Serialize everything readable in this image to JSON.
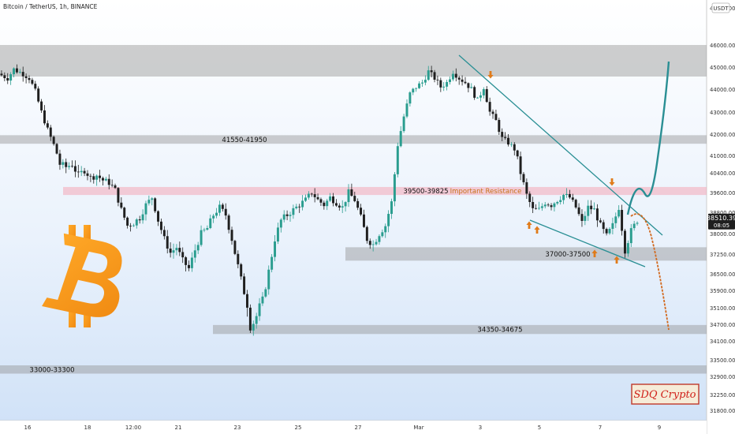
{
  "header": {
    "title": "Bitcoin / TetherUS, 1h, BINANCE",
    "currency_badge": "USDT"
  },
  "price_label": {
    "price": "38510.39",
    "countdown": "08:05"
  },
  "logo": {
    "text": "SDQ Crypto"
  },
  "colors": {
    "candle_up": "#2a9d8f",
    "candle_down": "#1f1f1f",
    "zone_gray": "#8c8c8c",
    "zone_pink": "#f4a6b6",
    "trendline": "#2a8f94",
    "bullish_path": "#2a8f94",
    "bearish_path": "#d2691e",
    "arrow": "#e07b1a",
    "bitcoin_orange": "#f7931a"
  },
  "chart_data": {
    "type": "candlestick",
    "title": "Bitcoin / TetherUS, 1h, BINANCE",
    "y_unit": "USDT",
    "ylim": [
      31600,
      47300
    ],
    "y_ticks": [
      47000,
      46000,
      45000,
      44000,
      43000,
      42000,
      41000,
      40400,
      39600,
      38800,
      38000,
      37250,
      36500,
      35900,
      35100,
      34700,
      34100,
      33500,
      32900,
      32250,
      31800
    ],
    "x_tick_labels": [
      "16",
      "18",
      "12:00",
      "21",
      "23",
      "25",
      "27",
      "Mar",
      "3",
      "5",
      "7",
      "9"
    ],
    "close_path": [
      [
        0,
        44700
      ],
      [
        3,
        44500
      ],
      [
        5,
        44900
      ],
      [
        8,
        44700
      ],
      [
        10,
        44500
      ],
      [
        12,
        43900
      ],
      [
        14,
        43000
      ],
      [
        16,
        42200
      ],
      [
        18,
        41500
      ],
      [
        20,
        40700
      ],
      [
        22,
        40600
      ],
      [
        24,
        40700
      ],
      [
        26,
        40300
      ],
      [
        28,
        40500
      ],
      [
        30,
        40200
      ],
      [
        32,
        40300
      ],
      [
        34,
        40100
      ],
      [
        36,
        40000
      ],
      [
        38,
        39700
      ],
      [
        40,
        38900
      ],
      [
        42,
        38300
      ],
      [
        44,
        38400
      ],
      [
        46,
        38600
      ],
      [
        48,
        39100
      ],
      [
        50,
        39400
      ],
      [
        52,
        38500
      ],
      [
        54,
        37800
      ],
      [
        56,
        37300
      ],
      [
        58,
        37500
      ],
      [
        60,
        37000
      ],
      [
        62,
        36700
      ],
      [
        64,
        37400
      ],
      [
        66,
        38000
      ],
      [
        68,
        38200
      ],
      [
        70,
        38700
      ],
      [
        72,
        39000
      ],
      [
        74,
        38700
      ],
      [
        76,
        37800
      ],
      [
        78,
        36800
      ],
      [
        80,
        35800
      ],
      [
        82,
        34600
      ],
      [
        84,
        34900
      ],
      [
        86,
        35500
      ],
      [
        88,
        36600
      ],
      [
        90,
        37800
      ],
      [
        92,
        38500
      ],
      [
        94,
        38700
      ],
      [
        96,
        38900
      ],
      [
        98,
        39100
      ],
      [
        100,
        39300
      ],
      [
        102,
        39600
      ],
      [
        104,
        39300
      ],
      [
        106,
        39100
      ],
      [
        108,
        39400
      ],
      [
        110,
        39200
      ],
      [
        112,
        39000
      ],
      [
        114,
        39600
      ],
      [
        116,
        39300
      ],
      [
        118,
        38600
      ],
      [
        120,
        37800
      ],
      [
        122,
        37600
      ],
      [
        124,
        38000
      ],
      [
        126,
        38300
      ],
      [
        128,
        39200
      ],
      [
        130,
        41500
      ],
      [
        132,
        42800
      ],
      [
        134,
        43800
      ],
      [
        136,
        44100
      ],
      [
        138,
        44300
      ],
      [
        140,
        44800
      ],
      [
        142,
        44500
      ],
      [
        144,
        44100
      ],
      [
        146,
        44300
      ],
      [
        148,
        44800
      ],
      [
        150,
        44500
      ],
      [
        152,
        44300
      ],
      [
        154,
        44000
      ],
      [
        156,
        43500
      ],
      [
        158,
        44100
      ],
      [
        160,
        43000
      ],
      [
        162,
        42600
      ],
      [
        164,
        41800
      ],
      [
        166,
        41600
      ],
      [
        168,
        41300
      ],
      [
        170,
        40400
      ],
      [
        172,
        39500
      ],
      [
        174,
        38900
      ],
      [
        176,
        38900
      ],
      [
        178,
        39200
      ],
      [
        180,
        39100
      ],
      [
        182,
        39300
      ],
      [
        184,
        39500
      ],
      [
        186,
        39400
      ],
      [
        188,
        39000
      ],
      [
        190,
        38400
      ],
      [
        192,
        39000
      ],
      [
        194,
        38900
      ],
      [
        196,
        38300
      ],
      [
        198,
        37900
      ],
      [
        200,
        38300
      ],
      [
        202,
        39000
      ],
      [
        204,
        37400
      ],
      [
        206,
        38100
      ],
      [
        208,
        38500
      ]
    ],
    "zones": [
      {
        "label": "",
        "low": 44650,
        "high": 45950
      },
      {
        "label": "41550-41950",
        "low": 41550,
        "high": 41950
      },
      {
        "label": "39500-39825",
        "low": 39500,
        "high": 39825
      },
      {
        "label": "37000-37500",
        "low": 37000,
        "high": 37500
      },
      {
        "label": "34350-34675",
        "low": 34350,
        "high": 34675
      },
      {
        "label": "33000-33300",
        "low": 33000,
        "high": 33300
      }
    ],
    "annotations": [
      {
        "text": "Important Resistance"
      }
    ]
  }
}
